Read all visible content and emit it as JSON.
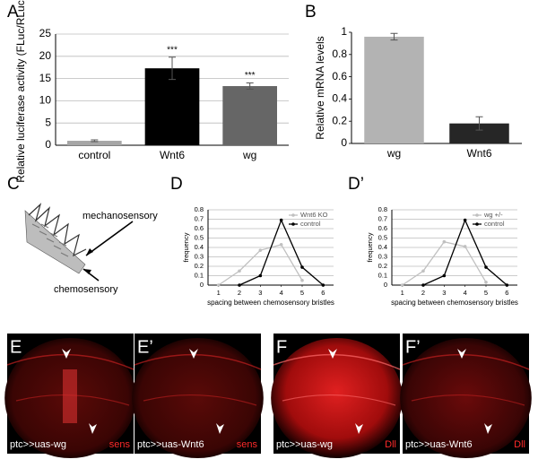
{
  "chart_data": [
    {
      "type": "bar",
      "panel": "A",
      "y_label": "Relative luciferase activity (FLuc/RLuc)",
      "categories": [
        "control",
        "Wnt6",
        "wg"
      ],
      "values": [
        1,
        17.3,
        13.3
      ],
      "errors": [
        0.2,
        2.5,
        0.7
      ],
      "colors": [
        "#a6a6a6",
        "#000000",
        "#666666"
      ],
      "ylim": [
        0,
        25
      ],
      "yticks": [
        0,
        5,
        10,
        15,
        20,
        25
      ],
      "grid": true,
      "annotations": [
        {
          "text": "***",
          "x": "Wnt6"
        },
        {
          "text": "***",
          "x": "wg"
        }
      ]
    },
    {
      "type": "bar",
      "panel": "B",
      "y_label": "Relative mRNA levels",
      "categories": [
        "wg",
        "Wnt6"
      ],
      "values": [
        0.96,
        0.18
      ],
      "errors": [
        0.03,
        0.06
      ],
      "colors": [
        "#b3b3b3",
        "#262626"
      ],
      "ylim": [
        0,
        1
      ],
      "yticks": [
        0,
        0.2,
        0.4,
        0.6,
        0.8,
        1
      ],
      "grid": false
    },
    {
      "type": "line",
      "panel": "D",
      "x_label": "spacing between chemosensory bristles",
      "y_label": "frequency",
      "x": [
        1,
        2,
        3,
        4,
        5,
        6
      ],
      "xlim": [
        0.5,
        6.5
      ],
      "xticks": [
        1,
        2,
        3,
        4,
        5,
        6
      ],
      "ylim": [
        0,
        0.8
      ],
      "yticks": [
        0,
        0.1,
        0.2,
        0.3,
        0.4,
        0.5,
        0.6,
        0.7,
        0.8
      ],
      "grid": true,
      "legend": "upper right",
      "series": [
        {
          "name": "Wnt6 KO",
          "color": "#c0c0c0",
          "values": [
            0,
            0.15,
            0.37,
            0.43,
            0.05,
            null
          ]
        },
        {
          "name": "control",
          "color": "#000000",
          "values": [
            null,
            0,
            0.1,
            0.69,
            0.19,
            0
          ]
        }
      ]
    },
    {
      "type": "line",
      "panel": "D’",
      "x_label": "spacing between chemosensory bristles",
      "y_label": "frequency",
      "x": [
        1,
        2,
        3,
        4,
        5,
        6
      ],
      "xlim": [
        0.5,
        6.5
      ],
      "xticks": [
        1,
        2,
        3,
        4,
        5,
        6
      ],
      "ylim": [
        0,
        0.8
      ],
      "yticks": [
        0,
        0.1,
        0.2,
        0.3,
        0.4,
        0.5,
        0.6,
        0.7,
        0.8
      ],
      "grid": true,
      "legend": "upper right",
      "series": [
        {
          "name": "wg +/-",
          "color": "#c0c0c0",
          "values": [
            0,
            0.15,
            0.46,
            0.41,
            0.03,
            null
          ]
        },
        {
          "name": "control",
          "color": "#000000",
          "values": [
            null,
            0,
            0.1,
            0.69,
            0.19,
            0
          ]
        }
      ]
    }
  ],
  "diagram": {
    "panel": "C",
    "labels": [
      "mechanosensory",
      "chemosensory"
    ]
  },
  "images": [
    {
      "panel": "E",
      "genotype": "ptc>>uas-wg",
      "stain": "sens"
    },
    {
      "panel": "E’",
      "genotype": "ptc>>uas-Wnt6",
      "stain": "sens"
    },
    {
      "panel": "F",
      "genotype": "ptc>>uas-wg",
      "stain": "Dll"
    },
    {
      "panel": "F’",
      "genotype": "ptc>>uas-Wnt6",
      "stain": "Dll"
    }
  ]
}
